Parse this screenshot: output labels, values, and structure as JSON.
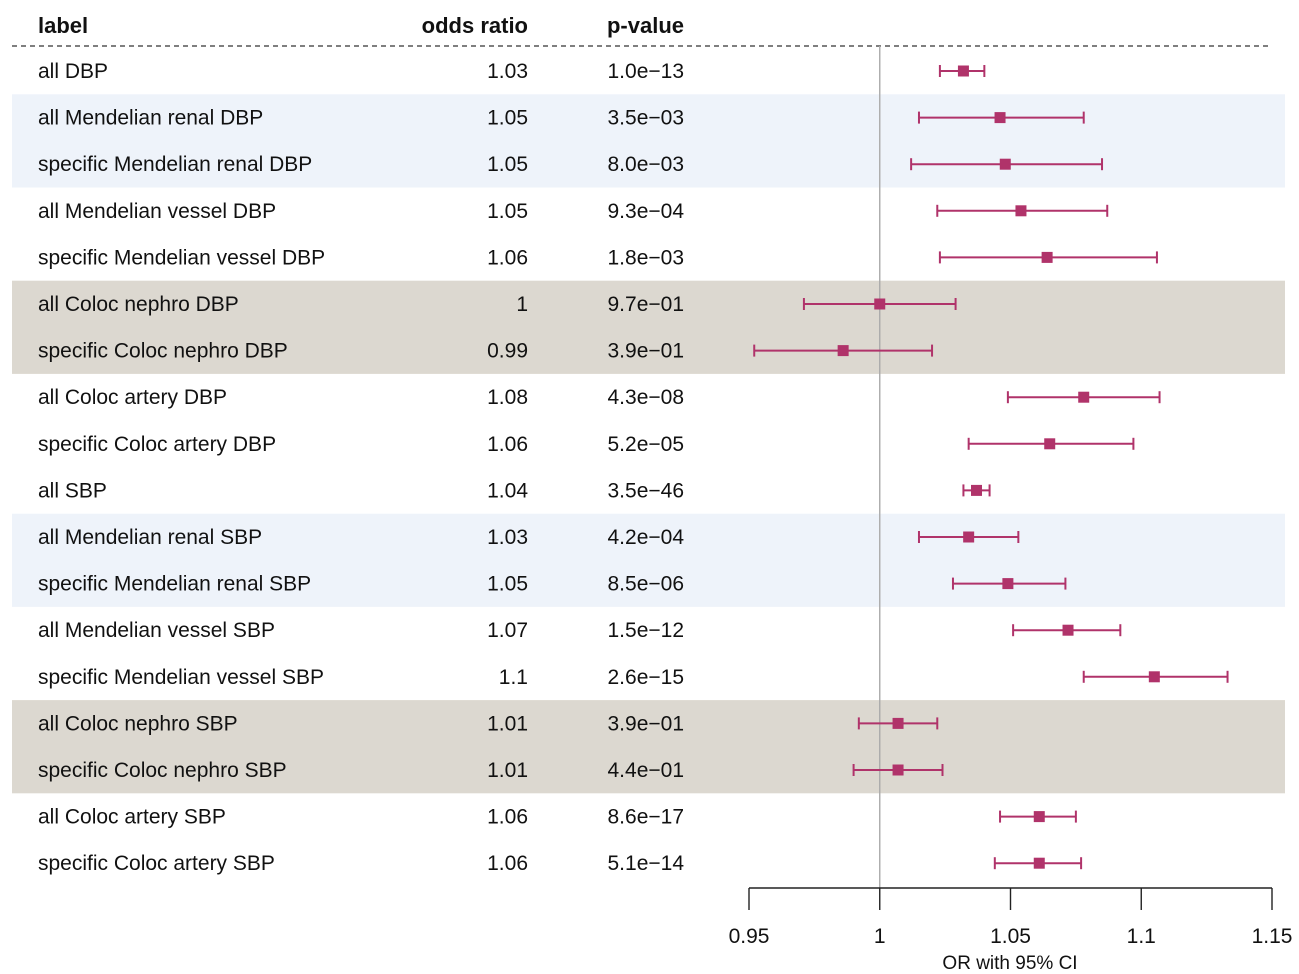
{
  "chart_data": {
    "type": "forest",
    "headers": {
      "label": "label",
      "or": "odds ratio",
      "p": "p-value"
    },
    "xlabel": "OR with 95% CI",
    "xlim": [
      0.95,
      1.15
    ],
    "xticks": [
      0.95,
      1,
      1.05,
      1.1,
      1.15
    ],
    "xtick_labels": [
      "0.95",
      "1",
      "1.05",
      "1.1",
      "1.15"
    ],
    "reference_line": 1,
    "colors": {
      "marker": "#b0336a",
      "band_blue": "#eef3fa",
      "band_grey": "#dcd8d0",
      "reference": "#aaaaaa"
    },
    "rows": [
      {
        "label": "all DBP",
        "or_text": "1.03",
        "p_text": "1.0e−13",
        "est": 1.032,
        "lo": 1.023,
        "hi": 1.04,
        "band": "none"
      },
      {
        "label": "all Mendelian renal DBP",
        "or_text": "1.05",
        "p_text": "3.5e−03",
        "est": 1.046,
        "lo": 1.015,
        "hi": 1.078,
        "band": "blue"
      },
      {
        "label": "specific Mendelian renal DBP",
        "or_text": "1.05",
        "p_text": "8.0e−03",
        "est": 1.048,
        "lo": 1.012,
        "hi": 1.085,
        "band": "blue"
      },
      {
        "label": "all Mendelian vessel DBP",
        "or_text": "1.05",
        "p_text": "9.3e−04",
        "est": 1.054,
        "lo": 1.022,
        "hi": 1.087,
        "band": "none"
      },
      {
        "label": "specific Mendelian vessel DBP",
        "or_text": "1.06",
        "p_text": "1.8e−03",
        "est": 1.064,
        "lo": 1.023,
        "hi": 1.106,
        "band": "none"
      },
      {
        "label": "all Coloc nephro DBP",
        "or_text": "1",
        "p_text": "9.7e−01",
        "est": 1.0,
        "lo": 0.971,
        "hi": 1.029,
        "band": "grey"
      },
      {
        "label": "specific Coloc nephro DBP",
        "or_text": "0.99",
        "p_text": "3.9e−01",
        "est": 0.986,
        "lo": 0.952,
        "hi": 1.02,
        "band": "grey"
      },
      {
        "label": "all Coloc artery DBP",
        "or_text": "1.08",
        "p_text": "4.3e−08",
        "est": 1.078,
        "lo": 1.049,
        "hi": 1.107,
        "band": "none"
      },
      {
        "label": "specific Coloc artery DBP",
        "or_text": "1.06",
        "p_text": "5.2e−05",
        "est": 1.065,
        "lo": 1.034,
        "hi": 1.097,
        "band": "none"
      },
      {
        "label": "all SBP",
        "or_text": "1.04",
        "p_text": "3.5e−46",
        "est": 1.037,
        "lo": 1.032,
        "hi": 1.042,
        "band": "none"
      },
      {
        "label": "all Mendelian renal SBP",
        "or_text": "1.03",
        "p_text": "4.2e−04",
        "est": 1.034,
        "lo": 1.015,
        "hi": 1.053,
        "band": "blue"
      },
      {
        "label": "specific Mendelian renal SBP",
        "or_text": "1.05",
        "p_text": "8.5e−06",
        "est": 1.049,
        "lo": 1.028,
        "hi": 1.071,
        "band": "blue"
      },
      {
        "label": "all Mendelian vessel SBP",
        "or_text": "1.07",
        "p_text": "1.5e−12",
        "est": 1.072,
        "lo": 1.051,
        "hi": 1.092,
        "band": "none"
      },
      {
        "label": "specific Mendelian vessel SBP",
        "or_text": "1.1",
        "p_text": "2.6e−15",
        "est": 1.105,
        "lo": 1.078,
        "hi": 1.133,
        "band": "none"
      },
      {
        "label": "all Coloc nephro SBP",
        "or_text": "1.01",
        "p_text": "3.9e−01",
        "est": 1.007,
        "lo": 0.992,
        "hi": 1.022,
        "band": "grey"
      },
      {
        "label": "specific Coloc nephro SBP",
        "or_text": "1.01",
        "p_text": "4.4e−01",
        "est": 1.007,
        "lo": 0.99,
        "hi": 1.024,
        "band": "grey"
      },
      {
        "label": "all Coloc artery SBP",
        "or_text": "1.06",
        "p_text": "8.6e−17",
        "est": 1.061,
        "lo": 1.046,
        "hi": 1.075,
        "band": "none"
      },
      {
        "label": "specific Coloc artery SBP",
        "or_text": "1.06",
        "p_text": "5.1e−14",
        "est": 1.061,
        "lo": 1.044,
        "hi": 1.077,
        "band": "none"
      }
    ]
  }
}
